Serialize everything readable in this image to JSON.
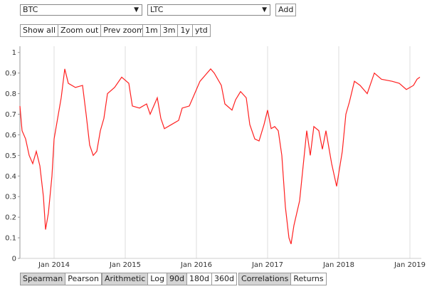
{
  "controls": {
    "asset1": "BTC",
    "asset2": "LTC",
    "add": "Add",
    "zoom": [
      "Show all",
      "Zoom out",
      "Prev zoom"
    ],
    "ranges": [
      "1m",
      "3m",
      "1y",
      "ytd"
    ],
    "method": {
      "buttons": [
        "Spearman",
        "Pearson"
      ],
      "selected": 0
    },
    "scale": {
      "buttons": [
        "Arithmetic",
        "Log"
      ],
      "selected": 0
    },
    "window": {
      "buttons": [
        "90d",
        "180d",
        "360d"
      ],
      "selected": 0
    },
    "view": {
      "buttons": [
        "Correlations",
        "Returns"
      ],
      "selected": 0
    }
  },
  "chart_data": {
    "type": "line",
    "color": "#ff2020",
    "grid": "x",
    "xlim": [
      2013.52,
      2019.16
    ],
    "xticks": [
      {
        "value": 2014,
        "label": "Jan 2014"
      },
      {
        "value": 2015,
        "label": "Jan 2015"
      },
      {
        "value": 2016,
        "label": "Jan 2016"
      },
      {
        "value": 2017,
        "label": "Jan 2017"
      },
      {
        "value": 2018,
        "label": "Jan 2018"
      },
      {
        "value": 2019,
        "label": "Jan 2019"
      }
    ],
    "ylim": [
      0,
      1.03
    ],
    "yticks": [
      0,
      0.1,
      0.2,
      0.3,
      0.4,
      0.5,
      0.6,
      0.7,
      0.8,
      0.9,
      1
    ],
    "x": [
      2013.52,
      2013.55,
      2013.6,
      2013.65,
      2013.7,
      2013.75,
      2013.8,
      2013.85,
      2013.88,
      2013.92,
      2013.97,
      2014.0,
      2014.05,
      2014.1,
      2014.15,
      2014.2,
      2014.3,
      2014.4,
      2014.45,
      2014.5,
      2014.55,
      2014.6,
      2014.65,
      2014.7,
      2014.75,
      2014.85,
      2014.95,
      2015.05,
      2015.1,
      2015.2,
      2015.3,
      2015.35,
      2015.45,
      2015.5,
      2015.55,
      2015.65,
      2015.75,
      2015.8,
      2015.9,
      2015.95,
      2016.05,
      2016.15,
      2016.2,
      2016.25,
      2016.35,
      2016.4,
      2016.5,
      2016.55,
      2016.62,
      2016.7,
      2016.75,
      2016.82,
      2016.88,
      2016.95,
      2017.0,
      2017.05,
      2017.1,
      2017.15,
      2017.2,
      2017.25,
      2017.3,
      2017.33,
      2017.37,
      2017.45,
      2017.5,
      2017.55,
      2017.6,
      2017.65,
      2017.72,
      2017.77,
      2017.82,
      2017.9,
      2017.97,
      2018.05,
      2018.1,
      2018.15,
      2018.22,
      2018.3,
      2018.4,
      2018.5,
      2018.6,
      2018.75,
      2018.85,
      2018.95,
      2019.05,
      2019.1,
      2019.14
    ],
    "values": [
      0.74,
      0.62,
      0.58,
      0.5,
      0.46,
      0.52,
      0.45,
      0.3,
      0.14,
      0.22,
      0.4,
      0.58,
      0.68,
      0.78,
      0.92,
      0.85,
      0.83,
      0.84,
      0.7,
      0.55,
      0.5,
      0.52,
      0.62,
      0.68,
      0.8,
      0.83,
      0.88,
      0.85,
      0.74,
      0.73,
      0.75,
      0.7,
      0.78,
      0.68,
      0.63,
      0.65,
      0.67,
      0.73,
      0.74,
      0.78,
      0.86,
      0.9,
      0.92,
      0.9,
      0.84,
      0.75,
      0.72,
      0.77,
      0.81,
      0.78,
      0.65,
      0.58,
      0.57,
      0.65,
      0.72,
      0.63,
      0.64,
      0.62,
      0.5,
      0.25,
      0.1,
      0.07,
      0.16,
      0.28,
      0.45,
      0.62,
      0.5,
      0.64,
      0.62,
      0.53,
      0.62,
      0.46,
      0.35,
      0.52,
      0.7,
      0.76,
      0.86,
      0.84,
      0.8,
      0.9,
      0.87,
      0.86,
      0.85,
      0.82,
      0.84,
      0.87,
      0.88
    ]
  }
}
